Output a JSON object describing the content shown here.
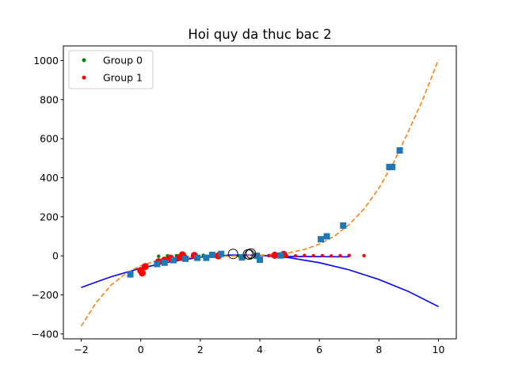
{
  "chart_data": {
    "type": "scatter",
    "title": "Hoi quy da thuc bac 2",
    "xlabel": "",
    "ylabel": "",
    "xlim": [
      -2.6,
      10.6
    ],
    "ylim": [
      -425,
      1075
    ],
    "xticks": [
      -2,
      0,
      2,
      4,
      6,
      8,
      10
    ],
    "yticks": [
      -400,
      -200,
      0,
      200,
      400,
      600,
      800,
      1000
    ],
    "xtick_labels": [
      "−2",
      "0",
      "2",
      "4",
      "6",
      "8",
      "10"
    ],
    "ytick_labels": [
      "−400",
      "−200",
      "0",
      "200",
      "400",
      "600",
      "800",
      "1000"
    ],
    "grid": false,
    "legend": {
      "position": "top-left",
      "entries": [
        {
          "name": "Group 0",
          "color": "#008000"
        },
        {
          "name": "Group 1",
          "color": "#ff0000"
        }
      ]
    },
    "lines": [
      {
        "style": "solid",
        "color": "#0000ff",
        "x": [
          -2,
          -1,
          0,
          1,
          2,
          3,
          4,
          5,
          6,
          7,
          8,
          9,
          10
        ],
        "y": [
          -162,
          -107,
          -63,
          -30,
          -7,
          4,
          3,
          -10,
          -35,
          -72,
          -121,
          -183,
          -260
        ]
      },
      {
        "style": "dashed",
        "color": "#ff7f0e",
        "x": [
          -2,
          -1.5,
          -1,
          -0.5,
          0,
          0.5,
          1,
          1.5,
          2,
          2.5,
          3,
          3.5,
          4,
          4.5,
          5,
          5.5,
          6,
          6.5,
          7,
          7.5,
          8,
          8.5,
          9,
          9.5,
          10
        ],
        "y": [
          -360,
          -240,
          -150,
          -90,
          -50,
          -27,
          -15,
          -9,
          -5,
          -3,
          -1,
          1,
          3,
          8,
          16,
          33,
          60,
          100,
          160,
          240,
          346,
          480,
          640,
          810,
          1005
        ]
      },
      {
        "style": "solid",
        "color": "#0000ff",
        "x": [
          4.5,
          7.0
        ],
        "y": [
          -3,
          -5
        ]
      }
    ],
    "series": [
      {
        "name": "Group 0",
        "color": "#008000",
        "marker": "dot",
        "x": [
          0.6,
          0.9,
          1.2,
          1.5,
          2.1,
          2.7,
          3.3
        ],
        "y": [
          -2,
          0,
          1,
          -1,
          3,
          2,
          0
        ]
      },
      {
        "name": "Group 1",
        "color": "#ff0000",
        "marker": "dot",
        "x": [
          4.3,
          4.6,
          4.9,
          5.2,
          5.5,
          5.8,
          6.1,
          6.4,
          6.7,
          7.0,
          7.5
        ],
        "y": [
          1,
          2,
          1,
          0,
          2,
          1,
          1,
          0,
          1,
          2,
          1
        ]
      },
      {
        "name": "",
        "color": "#ff0000",
        "marker": "large-dot",
        "x": [
          0.0,
          0.05,
          0.15,
          0.6,
          0.8,
          1.0,
          1.3,
          1.4,
          1.8,
          2.6,
          4.5,
          4.8
        ],
        "y": [
          -75,
          -88,
          -55,
          -30,
          -22,
          -12,
          -8,
          5,
          2,
          0,
          3,
          8
        ]
      },
      {
        "name": "",
        "color": "#1f77b4",
        "marker": "square",
        "x": [
          -0.35,
          0.55,
          0.8,
          1.1,
          1.5,
          1.9,
          2.2,
          2.4,
          2.7,
          3.4,
          3.9,
          4.0,
          4.7,
          6.05,
          6.25,
          6.8,
          8.35,
          8.45,
          8.7
        ],
        "y": [
          -95,
          -42,
          -35,
          -22,
          -15,
          -10,
          -10,
          5,
          10,
          -8,
          0,
          -20,
          2,
          85,
          100,
          155,
          455,
          455,
          540
        ]
      },
      {
        "name": "",
        "color": "#000000",
        "marker": "open-circle",
        "x": [
          3.1,
          3.6,
          3.65,
          3.7
        ],
        "y": [
          10,
          8,
          6,
          12
        ]
      }
    ]
  }
}
